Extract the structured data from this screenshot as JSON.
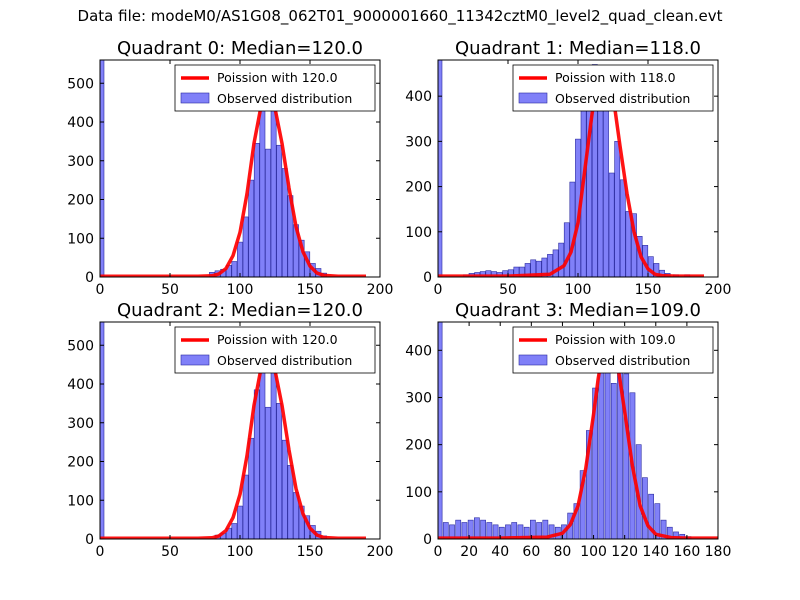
{
  "suptitle": "Data file: modeM0/AS1G08_062T01_9000001660_11342cztM0_level2_quad_clean.evt",
  "colors": {
    "bar_fill": "#8080f8",
    "bar_edge": "#2a2aa0",
    "fit_line": "#ff0000"
  },
  "chart_data": [
    {
      "type": "bar",
      "title": "Quadrant 0: Median=120.0",
      "xlim": [
        0,
        200
      ],
      "ylim": [
        0,
        560
      ],
      "xticks": [
        "0",
        "50",
        "100",
        "150",
        "200"
      ],
      "yticks": [
        "0",
        "100",
        "200",
        "300",
        "400",
        "500"
      ],
      "xtick_values": [
        0,
        50,
        100,
        150,
        200
      ],
      "ytick_values": [
        0,
        100,
        200,
        300,
        400,
        500
      ],
      "legend": [
        "Poission with 120.0",
        "Observed distribution"
      ],
      "legend_loc": "upper right",
      "bin_width": 3.7,
      "bin_centers": [
        1,
        80,
        84,
        88,
        92,
        96,
        100,
        104,
        108,
        112,
        116,
        120,
        124,
        128,
        132,
        136,
        140,
        144,
        148,
        152,
        156,
        160
      ],
      "counts": [
        560,
        12,
        16,
        20,
        30,
        40,
        90,
        155,
        250,
        345,
        440,
        330,
        490,
        340,
        280,
        210,
        135,
        95,
        65,
        35,
        22,
        10
      ],
      "fit_x": [
        0,
        50,
        70,
        80,
        85,
        90,
        95,
        100,
        105,
        110,
        115,
        118,
        120,
        122,
        125,
        130,
        135,
        140,
        145,
        150,
        155,
        160,
        170,
        190
      ],
      "fit_y": [
        2,
        2,
        2,
        3,
        8,
        22,
        55,
        115,
        215,
        345,
        440,
        470,
        475,
        470,
        435,
        345,
        230,
        130,
        65,
        28,
        10,
        4,
        2,
        2
      ]
    },
    {
      "type": "bar",
      "title": "Quadrant 1: Median=118.0",
      "xlim": [
        0,
        200
      ],
      "ylim": [
        0,
        480
      ],
      "xticks": [
        "0",
        "50",
        "100",
        "150",
        "200"
      ],
      "yticks": [
        "0",
        "100",
        "200",
        "300",
        "400"
      ],
      "xtick_values": [
        0,
        50,
        100,
        150,
        200
      ],
      "ytick_values": [
        0,
        100,
        200,
        300,
        400
      ],
      "legend": [
        "Poission with 118.0",
        "Observed distribution"
      ],
      "legend_loc": "upper right",
      "bin_width": 3.7,
      "bin_centers": [
        1,
        20,
        24,
        28,
        32,
        36,
        40,
        44,
        48,
        52,
        56,
        60,
        64,
        68,
        72,
        76,
        80,
        84,
        88,
        92,
        96,
        100,
        104,
        108,
        112,
        116,
        120,
        124,
        128,
        132,
        136,
        140,
        144,
        148,
        152,
        156,
        160,
        164,
        170,
        178
      ],
      "counts": [
        480,
        5,
        8,
        10,
        12,
        14,
        12,
        10,
        14,
        16,
        22,
        22,
        30,
        38,
        35,
        42,
        50,
        60,
        75,
        120,
        210,
        305,
        440,
        400,
        470,
        380,
        410,
        230,
        300,
        215,
        145,
        140,
        90,
        70,
        45,
        30,
        15,
        8,
        5,
        5
      ],
      "fit_x": [
        0,
        50,
        80,
        90,
        95,
        100,
        105,
        110,
        113,
        116,
        118,
        120,
        123,
        126,
        130,
        135,
        140,
        145,
        150,
        155,
        160,
        170,
        190
      ],
      "fit_y": [
        2,
        2,
        6,
        25,
        55,
        120,
        240,
        360,
        420,
        455,
        465,
        455,
        430,
        380,
        290,
        185,
        100,
        45,
        18,
        6,
        3,
        2,
        2
      ]
    },
    {
      "type": "bar",
      "title": "Quadrant 2: Median=120.0",
      "xlim": [
        0,
        200
      ],
      "ylim": [
        0,
        560
      ],
      "xticks": [
        "0",
        "50",
        "100",
        "150",
        "200"
      ],
      "yticks": [
        "0",
        "100",
        "200",
        "300",
        "400",
        "500"
      ],
      "xtick_values": [
        0,
        50,
        100,
        150,
        200
      ],
      "ytick_values": [
        0,
        100,
        200,
        300,
        400,
        500
      ],
      "legend": [
        "Poission with 120.0",
        "Observed distribution"
      ],
      "legend_loc": "upper right",
      "bin_width": 3.7,
      "bin_centers": [
        1,
        84,
        88,
        92,
        96,
        100,
        104,
        108,
        112,
        116,
        120,
        124,
        128,
        132,
        136,
        140,
        144,
        148,
        152,
        156,
        160
      ],
      "counts": [
        560,
        10,
        15,
        28,
        40,
        85,
        165,
        260,
        385,
        480,
        340,
        440,
        350,
        255,
        190,
        120,
        85,
        60,
        35,
        20,
        8
      ],
      "fit_x": [
        0,
        50,
        70,
        80,
        85,
        90,
        95,
        100,
        105,
        110,
        115,
        118,
        120,
        122,
        125,
        130,
        135,
        140,
        145,
        150,
        155,
        160,
        170,
        190
      ],
      "fit_y": [
        2,
        2,
        2,
        3,
        8,
        22,
        55,
        115,
        215,
        345,
        440,
        470,
        475,
        470,
        435,
        345,
        230,
        130,
        65,
        28,
        10,
        4,
        2,
        2
      ]
    },
    {
      "type": "bar",
      "title": "Quadrant 3: Median=109.0",
      "xlim": [
        0,
        180
      ],
      "ylim": [
        0,
        460
      ],
      "xticks": [
        "0",
        "20",
        "40",
        "60",
        "80",
        "100",
        "120",
        "140",
        "160",
        "180"
      ],
      "yticks": [
        "0",
        "100",
        "200",
        "300",
        "400"
      ],
      "xtick_values": [
        0,
        20,
        40,
        60,
        80,
        100,
        120,
        140,
        160,
        180
      ],
      "ytick_values": [
        0,
        100,
        200,
        300,
        400
      ],
      "legend": [
        "Poission with 109.0",
        "Observed distribution"
      ],
      "legend_loc": "upper right",
      "bin_width": 3.3,
      "bin_centers": [
        1,
        5,
        9,
        13,
        17,
        21,
        25,
        29,
        33,
        37,
        41,
        45,
        49,
        53,
        57,
        61,
        65,
        69,
        73,
        77,
        81,
        85,
        89,
        93,
        97,
        101,
        105,
        109,
        113,
        117,
        121,
        125,
        129,
        133,
        137,
        141,
        145,
        149,
        153,
        157,
        161
      ],
      "counts": [
        460,
        35,
        30,
        40,
        35,
        40,
        45,
        40,
        35,
        30,
        25,
        30,
        35,
        30,
        25,
        40,
        35,
        40,
        30,
        25,
        30,
        55,
        75,
        145,
        230,
        320,
        395,
        410,
        330,
        440,
        350,
        310,
        200,
        130,
        95,
        75,
        40,
        25,
        15,
        10,
        5
      ],
      "fit_x": [
        0,
        40,
        70,
        80,
        85,
        90,
        95,
        100,
        103,
        106,
        109,
        112,
        115,
        120,
        125,
        130,
        135,
        140,
        150,
        160,
        180
      ],
      "fit_y": [
        2,
        2,
        4,
        12,
        30,
        70,
        150,
        265,
        340,
        400,
        430,
        420,
        380,
        270,
        155,
        70,
        28,
        10,
        3,
        2,
        2
      ]
    }
  ]
}
